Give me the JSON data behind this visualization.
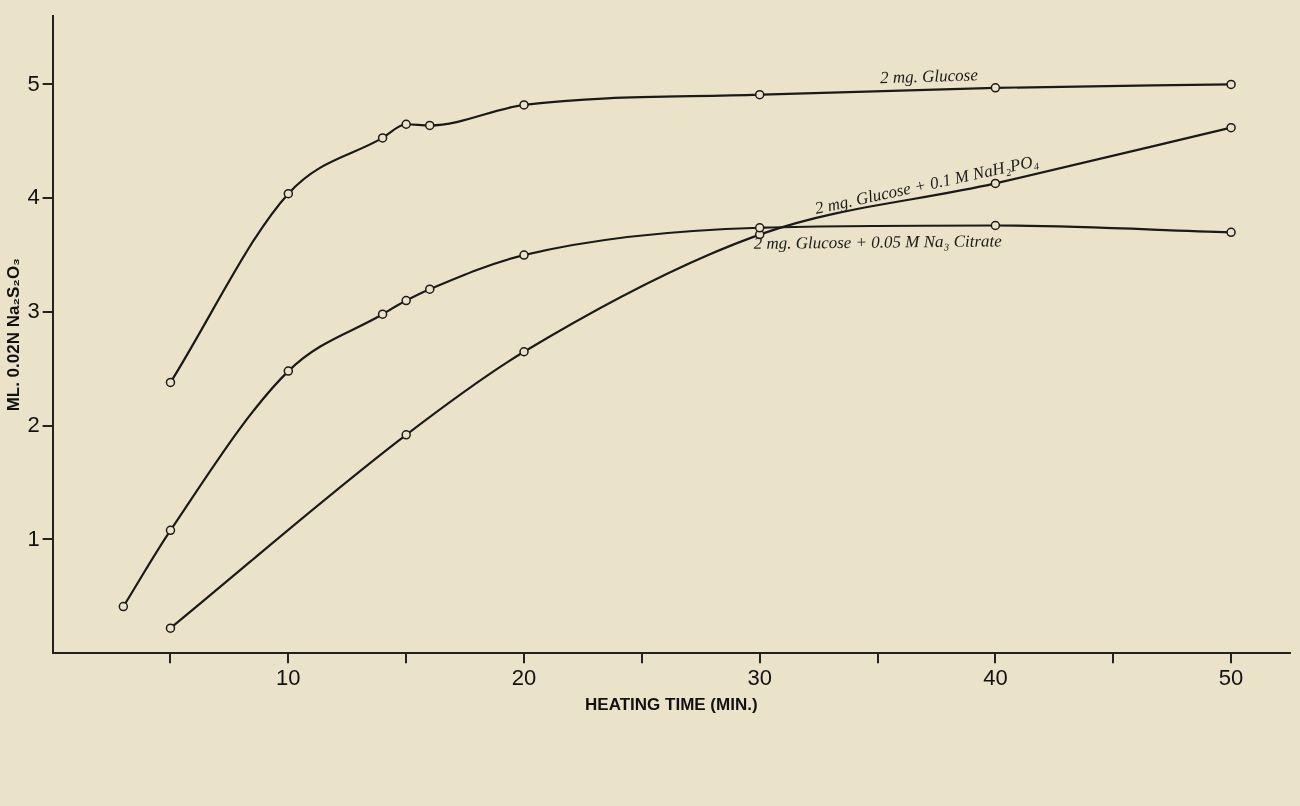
{
  "chart_data": {
    "type": "line",
    "xlabel": "HEATING TIME (MIN.)",
    "ylabel": "ML. 0.02N Na₂S₂O₃",
    "xlim": [
      0,
      52.5
    ],
    "ylim": [
      0,
      5.6
    ],
    "xticks": [
      {
        "value": 5,
        "label": null
      },
      10,
      {
        "value": 15,
        "label": null
      },
      20,
      {
        "value": 25,
        "label": null
      },
      30,
      {
        "value": 35,
        "label": null
      },
      40,
      {
        "value": 45,
        "label": null
      },
      50
    ],
    "yticks": [
      1,
      2,
      3,
      4,
      5
    ],
    "grid": false,
    "legend": false,
    "marker": "circle",
    "line_style": "solid",
    "series": [
      {
        "name": "2 mg. Glucose",
        "color": "#1a1a1a",
        "x": [
          5,
          10,
          14,
          15,
          16,
          20,
          30,
          40,
          50
        ],
        "values": [
          2.38,
          4.04,
          4.53,
          4.65,
          4.64,
          4.82,
          4.91,
          4.97,
          5.0
        ]
      },
      {
        "name": "2 mg. Glucose + 0.05 M Na₃ Citrate",
        "color": "#1a1a1a",
        "x": [
          3,
          5,
          10,
          14,
          15,
          16,
          20,
          30,
          40,
          50
        ],
        "values": [
          0.41,
          1.08,
          2.48,
          2.98,
          3.1,
          3.2,
          3.5,
          3.74,
          3.76,
          3.7
        ]
      },
      {
        "name": "2 mg. Glucose + 0.1 M NaH₂PO₄",
        "color": "#1a1a1a",
        "x": [
          5,
          15,
          20,
          30,
          40,
          50
        ],
        "values": [
          0.22,
          1.92,
          2.65,
          3.68,
          4.13,
          4.62
        ]
      }
    ]
  }
}
